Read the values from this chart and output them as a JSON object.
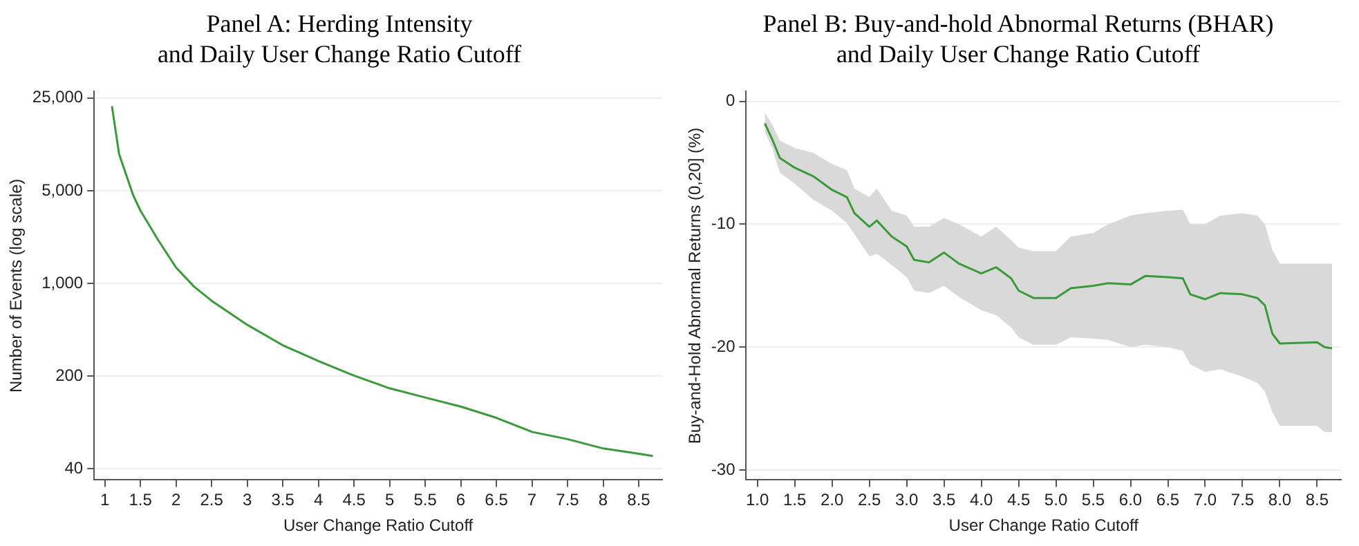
{
  "chart_data": [
    {
      "type": "line",
      "title": "Panel A: Herding Intensity\nand Daily User Change Ratio Cutoff",
      "xlabel": "User Change Ratio Cutoff",
      "ylabel": "Number of Events (log scale)",
      "log": "y",
      "grid": "y",
      "legend": false,
      "marker": "none",
      "line_style": "solid",
      "xlim": [
        0.85,
        8.83
      ],
      "xticks": [
        1,
        1.5,
        2,
        2.5,
        3,
        3.5,
        4,
        4.5,
        5,
        5.5,
        6,
        6.5,
        7,
        7.5,
        8,
        8.5
      ],
      "ylim": [
        33,
        28000
      ],
      "yticks": [
        40,
        200,
        {
          "value": 1000,
          "label": "1,000"
        },
        {
          "value": 5000,
          "label": "5,000"
        },
        {
          "value": 25000,
          "label": "25,000"
        }
      ],
      "series": [
        {
          "color": "#3a9a3a",
          "x": [
            1.1,
            1.2,
            1.3,
            1.4,
            1.5,
            1.6,
            1.75,
            2,
            2.25,
            2.5,
            3,
            3.5,
            4,
            4.5,
            5,
            5.5,
            6,
            6.5,
            7,
            7.5,
            8,
            8.5,
            8.7
          ],
          "values": [
            21700,
            9470,
            6590,
            4600,
            3540,
            2890,
            2120,
            1320,
            950,
            740,
            488,
            342,
            260,
            202,
            162,
            138,
            118,
            97,
            76,
            67,
            57,
            52,
            50
          ]
        }
      ]
    },
    {
      "type": "line",
      "title": "Panel B: Buy-and-hold Abnormal Returns (BHAR)\nand Daily User Change Ratio Cutoff",
      "xlabel": "User Change Ratio Cutoff",
      "ylabel": "Buy-and-Hold Abnormal Returns (0,20] (%)",
      "grid": "y",
      "legend": false,
      "marker": "none",
      "line_style": "solid",
      "xlim": [
        0.85,
        8.82
      ],
      "xticks": [
        {
          "value": 1,
          "label": "1.0"
        },
        1.5,
        {
          "value": 2,
          "label": "2.0"
        },
        2.5,
        {
          "value": 3,
          "label": "3.0"
        },
        3.5,
        {
          "value": 4,
          "label": "4.0"
        },
        4.5,
        {
          "value": 5,
          "label": "5.0"
        },
        5.5,
        {
          "value": 6,
          "label": "6.0"
        },
        6.5,
        {
          "value": 7,
          "label": "7.0"
        },
        7.5,
        {
          "value": 8,
          "label": "8.0"
        },
        8.5
      ],
      "ylim": [
        -30.8,
        0.8
      ],
      "yticks": [
        -30,
        -20,
        -10,
        0
      ],
      "series": [
        {
          "color": "#3a9a3a",
          "x": [
            1.1,
            1.2,
            1.3,
            1.5,
            1.75,
            2.0,
            2.2,
            2.3,
            2.5,
            2.6,
            2.8,
            3.0,
            3.1,
            3.3,
            3.5,
            3.7,
            4.0,
            4.2,
            4.4,
            4.5,
            4.7,
            5.0,
            5.2,
            5.5,
            5.7,
            6.0,
            6.2,
            6.5,
            6.7,
            6.8,
            7.0,
            7.2,
            7.5,
            7.7,
            7.8,
            7.9,
            8.0,
            8.5,
            8.6,
            8.7
          ],
          "values": [
            -1.8,
            -3.1,
            -4.6,
            -5.4,
            -6.1,
            -7.2,
            -7.8,
            -9.1,
            -10.2,
            -9.7,
            -11.0,
            -11.8,
            -12.9,
            -13.1,
            -12.3,
            -13.2,
            -14.0,
            -13.5,
            -14.4,
            -15.4,
            -16.0,
            -16.0,
            -15.2,
            -15.0,
            -14.8,
            -14.9,
            -14.2,
            -14.3,
            -14.4,
            -15.7,
            -16.1,
            -15.6,
            -15.7,
            -16.0,
            -16.6,
            -18.9,
            -19.7,
            -19.6,
            -20.0,
            -20.1
          ],
          "upper": [
            -0.9,
            -1.9,
            -3.2,
            -3.8,
            -4.2,
            -5.1,
            -5.6,
            -7.1,
            -7.8,
            -7.1,
            -8.9,
            -9.3,
            -10.2,
            -10.2,
            -9.5,
            -10.0,
            -11.0,
            -10.2,
            -11.3,
            -11.9,
            -12.2,
            -12.2,
            -11.0,
            -10.7,
            -10.0,
            -9.3,
            -9.1,
            -8.9,
            -8.8,
            -10.0,
            -10.0,
            -9.3,
            -9.1,
            -9.3,
            -10.0,
            -12.1,
            -13.2,
            -13.2,
            -13.2,
            -13.2
          ],
          "lower": [
            -2.5,
            -3.8,
            -5.8,
            -6.7,
            -8.0,
            -8.9,
            -9.9,
            -10.8,
            -12.6,
            -12.4,
            -13.3,
            -14.3,
            -15.4,
            -15.6,
            -15.0,
            -15.9,
            -17.0,
            -17.4,
            -18.4,
            -19.2,
            -19.8,
            -19.8,
            -19.2,
            -19.3,
            -19.4,
            -20.0,
            -19.8,
            -20.0,
            -20.3,
            -21.4,
            -22.0,
            -21.8,
            -22.4,
            -22.9,
            -23.6,
            -25.3,
            -26.4,
            -26.4,
            -26.9,
            -26.9
          ]
        }
      ]
    }
  ]
}
